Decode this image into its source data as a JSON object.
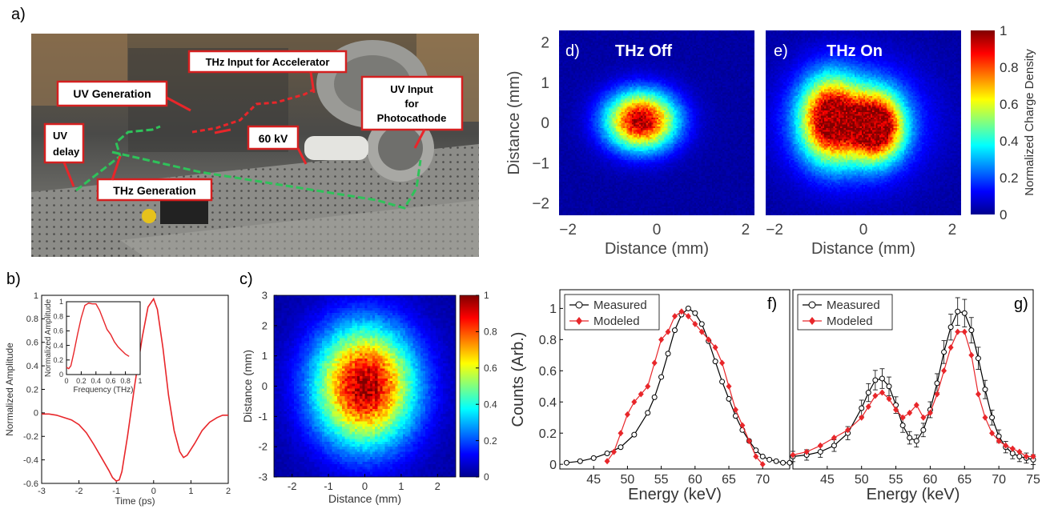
{
  "panel_letters": {
    "a": "a)",
    "b": "b)",
    "c": "c)",
    "d": "d)",
    "e": "e)",
    "f": "f)",
    "g": "g)"
  },
  "photo": {
    "labels": {
      "uv_generation": "UV Generation",
      "thz_input": "THz Input for Accelerator",
      "uv_input_1": "UV Input",
      "uv_input_2": "for",
      "uv_input_3": "Photocathode",
      "uv_delay_1": "UV",
      "uv_delay_2": "delay",
      "kv": "60 kV",
      "thz_generation": "THz Generation"
    }
  },
  "colorbars": {
    "de": {
      "label": "Normalized Charge Density",
      "ticks": [
        "0",
        "0.2",
        "0.4",
        "0.6",
        "0.8",
        "1"
      ]
    },
    "c": {
      "ticks": [
        "0",
        "0.2",
        "0.4",
        "0.6",
        "0.8",
        "1"
      ]
    }
  },
  "chart_data": [
    {
      "id": "b",
      "type": "line",
      "xlabel": "Time (ps)",
      "ylabel": "Normalized Amplitude",
      "xlim": [
        -3,
        2
      ],
      "ylim": [
        -0.6,
        1
      ],
      "xticks": [
        "-3",
        "-2",
        "-1",
        "0",
        "1",
        "2"
      ],
      "yticks": [
        "-0.6",
        "-0.4",
        "-0.2",
        "0",
        "0.2",
        "0.4",
        "0.6",
        "0.8",
        "1"
      ],
      "series": [
        {
          "color": "#e8262a",
          "x": [
            -3,
            -2.8,
            -2.6,
            -2.4,
            -2.2,
            -2.0,
            -1.8,
            -1.6,
            -1.4,
            -1.2,
            -1.1,
            -1.0,
            -0.92,
            -0.85,
            -0.7,
            -0.5,
            -0.3,
            -0.15,
            0,
            0.1,
            0.25,
            0.4,
            0.55,
            0.7,
            0.8,
            0.9,
            1.1,
            1.3,
            1.5,
            1.7,
            1.85,
            2.0
          ],
          "y": [
            -0.01,
            -0.01,
            -0.02,
            -0.04,
            -0.06,
            -0.1,
            -0.17,
            -0.27,
            -0.38,
            -0.49,
            -0.55,
            -0.58,
            -0.57,
            -0.5,
            -0.2,
            0.25,
            0.65,
            0.9,
            0.97,
            0.88,
            0.55,
            0.15,
            -0.15,
            -0.33,
            -0.38,
            -0.36,
            -0.26,
            -0.15,
            -0.08,
            -0.04,
            -0.02,
            -0.02
          ]
        }
      ]
    },
    {
      "id": "b-inset",
      "type": "line",
      "xlabel": "Frequency (THz)",
      "ylabel": "Normalized Amplitude",
      "xlim": [
        0,
        1
      ],
      "ylim": [
        0,
        1
      ],
      "xticks": [
        "0",
        "0.2",
        "0.4",
        "0.6",
        "0.8",
        "1"
      ],
      "yticks": [
        "0",
        "0.2",
        "0.4",
        "0.6",
        "0.8",
        "1"
      ],
      "series": [
        {
          "color": "#e8262a",
          "x": [
            0,
            0.03,
            0.06,
            0.1,
            0.15,
            0.2,
            0.25,
            0.3,
            0.35,
            0.4,
            0.45,
            0.5,
            0.55,
            0.6,
            0.65,
            0.7,
            0.75,
            0.8,
            0.85
          ],
          "y": [
            0.1,
            0.08,
            0.12,
            0.3,
            0.55,
            0.78,
            0.95,
            0.98,
            0.97,
            0.97,
            0.88,
            0.75,
            0.62,
            0.55,
            0.45,
            0.38,
            0.33,
            0.28,
            0.25
          ]
        }
      ]
    },
    {
      "id": "c",
      "type": "heatmap",
      "xlabel": "Distance (mm)",
      "ylabel": "Distance (mm)",
      "xlim": [
        -2.5,
        2.5
      ],
      "ylim": [
        3,
        -3
      ],
      "xticks": [
        "-2",
        "-1",
        "0",
        "1",
        "2"
      ],
      "yticks": [
        "-3",
        "-2",
        "-1",
        "0",
        "1",
        "2",
        "3"
      ],
      "blobs": [
        {
          "cx": 0,
          "cy": 0,
          "sx": 0.95,
          "sy": 1.35,
          "amp": 1.0
        }
      ]
    },
    {
      "id": "d",
      "type": "heatmap",
      "title": "THz Off",
      "xlabel": "Distance (mm)",
      "ylabel": "Distance (mm)",
      "xlim": [
        -2.2,
        2.2
      ],
      "ylim": [
        2.3,
        -2.3
      ],
      "xticks": [
        "−2",
        "0",
        "2"
      ],
      "yticks": [
        "−2",
        "−1",
        "0",
        "1",
        "2"
      ],
      "blobs": [
        {
          "cx": -0.35,
          "cy": 0.05,
          "sx": 0.55,
          "sy": 0.5,
          "amp": 1.0
        }
      ]
    },
    {
      "id": "e",
      "type": "heatmap",
      "title": "THz On",
      "xlabel": "Distance (mm)",
      "xlim": [
        -2.2,
        2.2
      ],
      "ylim": [
        2.3,
        -2.3
      ],
      "xticks": [
        "−2",
        "0",
        "2"
      ],
      "blobs": [
        {
          "cx": -0.75,
          "cy": 0.1,
          "sx": 0.45,
          "sy": 0.7,
          "amp": 0.85
        },
        {
          "cx": 0.3,
          "cy": -0.1,
          "sx": 0.4,
          "sy": 0.55,
          "amp": 0.95
        },
        {
          "cx": -0.2,
          "cy": 0.0,
          "sx": 1.0,
          "sy": 0.95,
          "amp": 0.35
        }
      ]
    },
    {
      "id": "f",
      "type": "line",
      "xlabel": "Energy (keV)",
      "ylabel": "Counts (Arb.)",
      "xlim": [
        40,
        74
      ],
      "ylim": [
        -0.03,
        1.12
      ],
      "xticks": [
        "45",
        "50",
        "55",
        "60",
        "65",
        "70"
      ],
      "yticks": [
        "0",
        "0.2",
        "0.4",
        "0.6",
        "0.8",
        "1"
      ],
      "legend_position": "top-left",
      "series": [
        {
          "name": "Measured",
          "color": "#000000",
          "marker": "circle",
          "x": [
            41,
            43,
            45,
            47,
            49,
            51,
            53,
            54,
            55,
            56,
            57,
            58,
            59,
            60,
            61,
            62,
            63,
            64,
            65,
            66,
            67,
            68,
            69,
            70,
            71,
            72,
            73,
            74
          ],
          "y": [
            0.01,
            0.02,
            0.04,
            0.07,
            0.11,
            0.19,
            0.33,
            0.43,
            0.56,
            0.71,
            0.86,
            0.96,
            1.0,
            0.97,
            0.9,
            0.79,
            0.66,
            0.53,
            0.42,
            0.31,
            0.22,
            0.15,
            0.09,
            0.05,
            0.03,
            0.02,
            0.01,
            0.01
          ]
        },
        {
          "name": "Modeled",
          "color": "#e8262a",
          "marker": "diamond",
          "x": [
            47,
            48,
            49,
            50,
            51,
            52,
            53,
            54,
            55,
            56,
            57,
            58,
            59,
            60,
            61,
            62,
            63,
            64,
            65,
            66,
            67,
            68,
            69,
            70
          ],
          "y": [
            0.02,
            0.08,
            0.2,
            0.32,
            0.4,
            0.45,
            0.5,
            0.65,
            0.8,
            0.85,
            0.95,
            0.98,
            0.95,
            0.9,
            0.85,
            0.8,
            0.75,
            0.65,
            0.5,
            0.35,
            0.25,
            0.15,
            0.05,
            0.0
          ]
        }
      ]
    },
    {
      "id": "g",
      "type": "line",
      "xlabel": "Energy (keV)",
      "xlim": [
        40,
        75
      ],
      "ylim": [
        -0.03,
        1.12
      ],
      "xticks": [
        "45",
        "50",
        "55",
        "60",
        "65",
        "70",
        "75"
      ],
      "legend_position": "top-left",
      "series": [
        {
          "name": "Measured",
          "color": "#000000",
          "marker": "circle",
          "error_bars": true,
          "x": [
            40,
            42,
            44,
            46,
            48,
            50,
            51,
            52,
            53,
            54,
            55,
            56,
            57,
            58,
            59,
            60,
            61,
            62,
            63,
            64,
            65,
            66,
            67,
            68,
            69,
            70,
            71,
            72,
            73,
            74,
            75
          ],
          "y": [
            0.05,
            0.06,
            0.08,
            0.12,
            0.2,
            0.36,
            0.46,
            0.54,
            0.55,
            0.5,
            0.38,
            0.25,
            0.17,
            0.15,
            0.22,
            0.35,
            0.52,
            0.72,
            0.88,
            0.98,
            0.97,
            0.86,
            0.68,
            0.48,
            0.3,
            0.18,
            0.11,
            0.07,
            0.05,
            0.04,
            0.03
          ]
        },
        {
          "name": "Modeled",
          "color": "#e8262a",
          "marker": "diamond",
          "x": [
            40,
            42,
            44,
            46,
            48,
            50,
            51,
            52,
            53,
            54,
            55,
            56,
            57,
            58,
            59,
            60,
            61,
            62,
            63,
            64,
            65,
            66,
            67,
            68,
            69,
            70,
            71,
            72,
            73,
            74,
            75
          ],
          "y": [
            0.06,
            0.08,
            0.12,
            0.17,
            0.22,
            0.3,
            0.37,
            0.44,
            0.46,
            0.42,
            0.35,
            0.3,
            0.33,
            0.38,
            0.3,
            0.33,
            0.45,
            0.6,
            0.75,
            0.85,
            0.85,
            0.7,
            0.45,
            0.3,
            0.2,
            0.15,
            0.12,
            0.1,
            0.08,
            0.05,
            0.05
          ]
        }
      ]
    }
  ]
}
